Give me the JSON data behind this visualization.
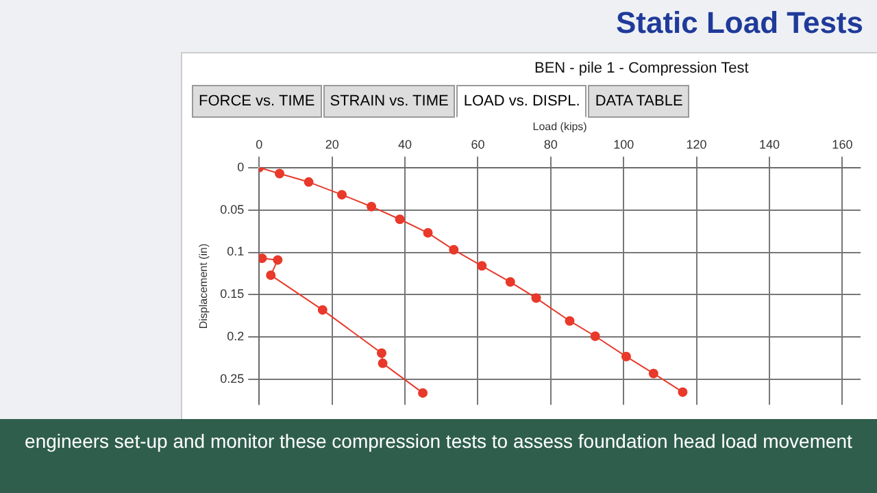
{
  "chart_data": {
    "type": "line",
    "title": "BEN - pile 1 - Compression Test",
    "xlabel": "Load (kips)",
    "ylabel": "Displacement (in)",
    "annotations": [
      "Static Load Tests",
      "FORCE vs. TIME",
      "STRAIN vs. TIME",
      "LOAD vs. DISPL.",
      "DATA TABLE",
      "engineers set-up and monitor these compression tests to assess foundation head load movement"
    ],
    "series": [
      {
        "color": "#e8392a",
        "x": [
          0,
          5.6,
          13.6,
          22.7,
          30.8,
          38.6,
          46.3,
          53.4,
          61.1,
          68.9,
          76,
          85.2,
          92.2,
          100.7,
          108.2,
          116.2
        ],
        "values": [
          0,
          0.007,
          0.017,
          0.032,
          0.046,
          0.061,
          0.077,
          0.097,
          0.116,
          0.135,
          0.154,
          0.181,
          0.199,
          0.223,
          0.243,
          0.265
        ]
      },
      {
        "color": "#e8392a",
        "x": [
          0.8,
          5.1,
          3.2,
          17.4,
          33.6,
          33.9,
          44.9
        ],
        "values": [
          0.107,
          0.109,
          0.127,
          0.168,
          0.219,
          0.231,
          0.266
        ]
      }
    ],
    "xlim": [
      0,
      165
    ],
    "xticks": [
      0,
      20,
      40,
      60,
      80,
      100,
      120,
      140,
      160
    ],
    "ylim": [
      0.28,
      0
    ],
    "yticks": [
      0,
      0.05,
      0.1,
      0.15,
      0.2,
      0.25
    ],
    "grid": true,
    "legend": false,
    "marker": "circle",
    "line_style": "solid"
  }
}
